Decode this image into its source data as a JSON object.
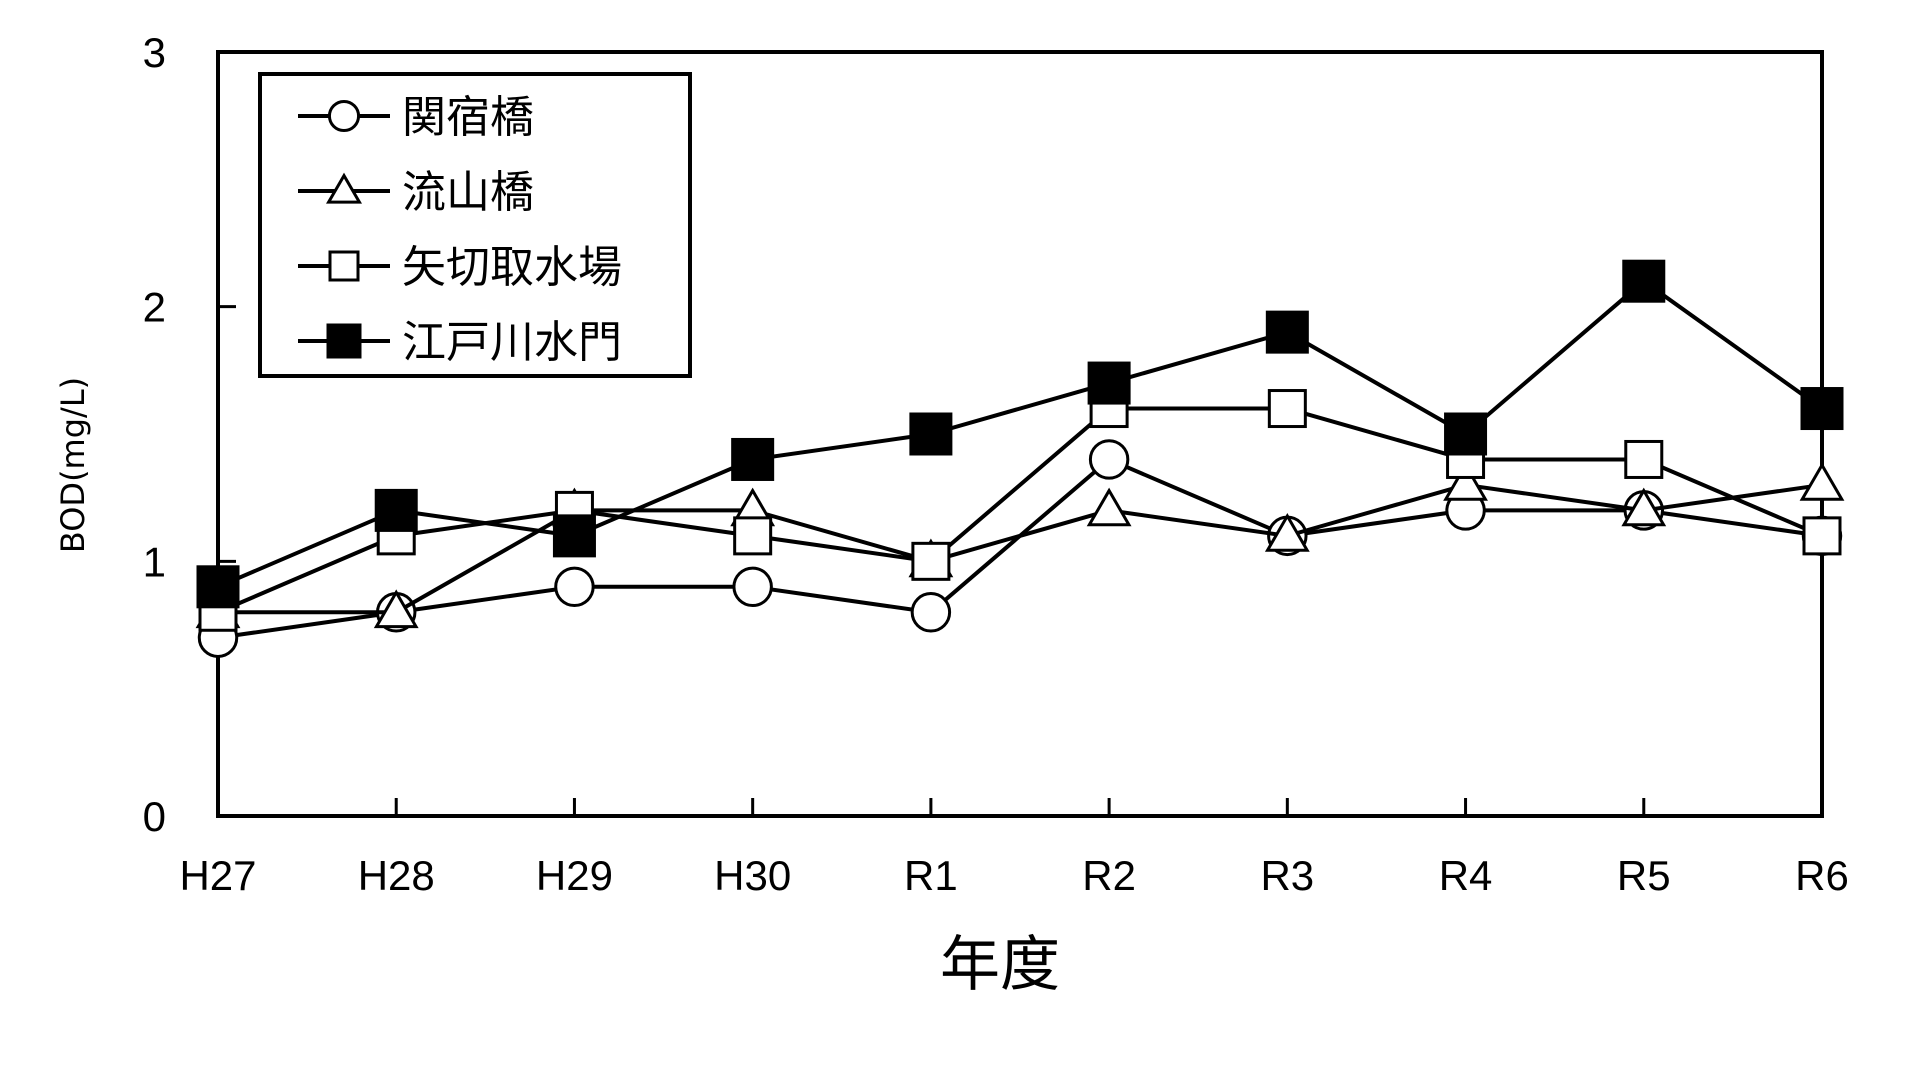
{
  "chart_data": {
    "type": "line",
    "xlabel": "年度",
    "ylabel": "BOD(mg/L)",
    "categories": [
      "H27",
      "H28",
      "H29",
      "H30",
      "R1",
      "R2",
      "R3",
      "R4",
      "R5",
      "R6"
    ],
    "ylim": [
      0,
      3
    ],
    "yticks": [
      "0",
      "1",
      "2",
      "3"
    ],
    "grid": false,
    "legend_position": "top-left",
    "series": [
      {
        "name": "関宿橋",
        "marker": "circle-open",
        "values": [
          0.7,
          0.8,
          0.9,
          0.9,
          0.8,
          1.4,
          1.1,
          1.2,
          1.2,
          1.1
        ]
      },
      {
        "name": "流山橋",
        "marker": "triangle-open",
        "values": [
          0.8,
          0.8,
          1.2,
          1.2,
          1.0,
          1.2,
          1.1,
          1.3,
          1.2,
          1.3
        ]
      },
      {
        "name": "矢切取水場",
        "marker": "square-open",
        "values": [
          0.8,
          1.1,
          1.2,
          1.1,
          1.0,
          1.6,
          1.6,
          1.4,
          1.4,
          1.1
        ]
      },
      {
        "name": "江戸川水門",
        "marker": "square-filled",
        "values": [
          0.9,
          1.2,
          1.1,
          1.4,
          1.5,
          1.7,
          1.9,
          1.5,
          2.1,
          1.6
        ]
      }
    ],
    "colors": {
      "line": "#000000",
      "background": "#ffffff"
    }
  }
}
